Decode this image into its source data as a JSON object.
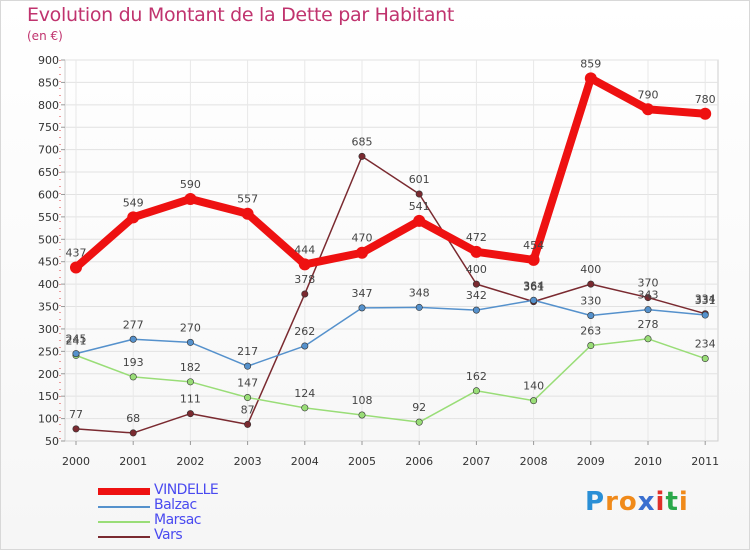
{
  "chart_data": {
    "type": "line",
    "title": "Evolution du Montant de la Dette par Habitant",
    "subtitle": "(en €)",
    "x": [
      "2000",
      "2001",
      "2002",
      "2003",
      "2004",
      "2005",
      "2006",
      "2007",
      "2008",
      "2009",
      "2010",
      "2011"
    ],
    "ylim": [
      50,
      900
    ],
    "yticks": [
      50,
      100,
      150,
      200,
      250,
      300,
      350,
      400,
      450,
      500,
      550,
      600,
      650,
      700,
      750,
      800,
      850,
      900
    ],
    "grid": true,
    "legend_position": "bottom-left",
    "series": [
      {
        "name": "VINDELLE",
        "color": "#ee1111",
        "values": [
          437,
          549,
          590,
          557,
          444,
          470,
          541,
          472,
          454,
          859,
          790,
          780
        ]
      },
      {
        "name": "Balzac",
        "color": "#5591cc",
        "values": [
          245,
          277,
          270,
          217,
          262,
          347,
          348,
          342,
          364,
          330,
          343,
          331
        ]
      },
      {
        "name": "Marsac",
        "color": "#99dd77",
        "values": [
          241,
          193,
          182,
          147,
          124,
          108,
          92,
          162,
          140,
          263,
          278,
          234
        ]
      },
      {
        "name": "Vars",
        "color": "#7a2a30",
        "values": [
          77,
          68,
          111,
          87,
          378,
          685,
          601,
          400,
          361,
          400,
          370,
          334
        ]
      }
    ]
  },
  "logo": {
    "text": "Proxiti",
    "letters": [
      "P",
      "r",
      "o",
      "x",
      "i",
      "t",
      "i"
    ],
    "colors": [
      "#2a8fd6",
      "#f08a1a",
      "#f08a1a",
      "#3a6fd0",
      "#e0302a",
      "#2aa84a",
      "#f08a1a"
    ]
  }
}
